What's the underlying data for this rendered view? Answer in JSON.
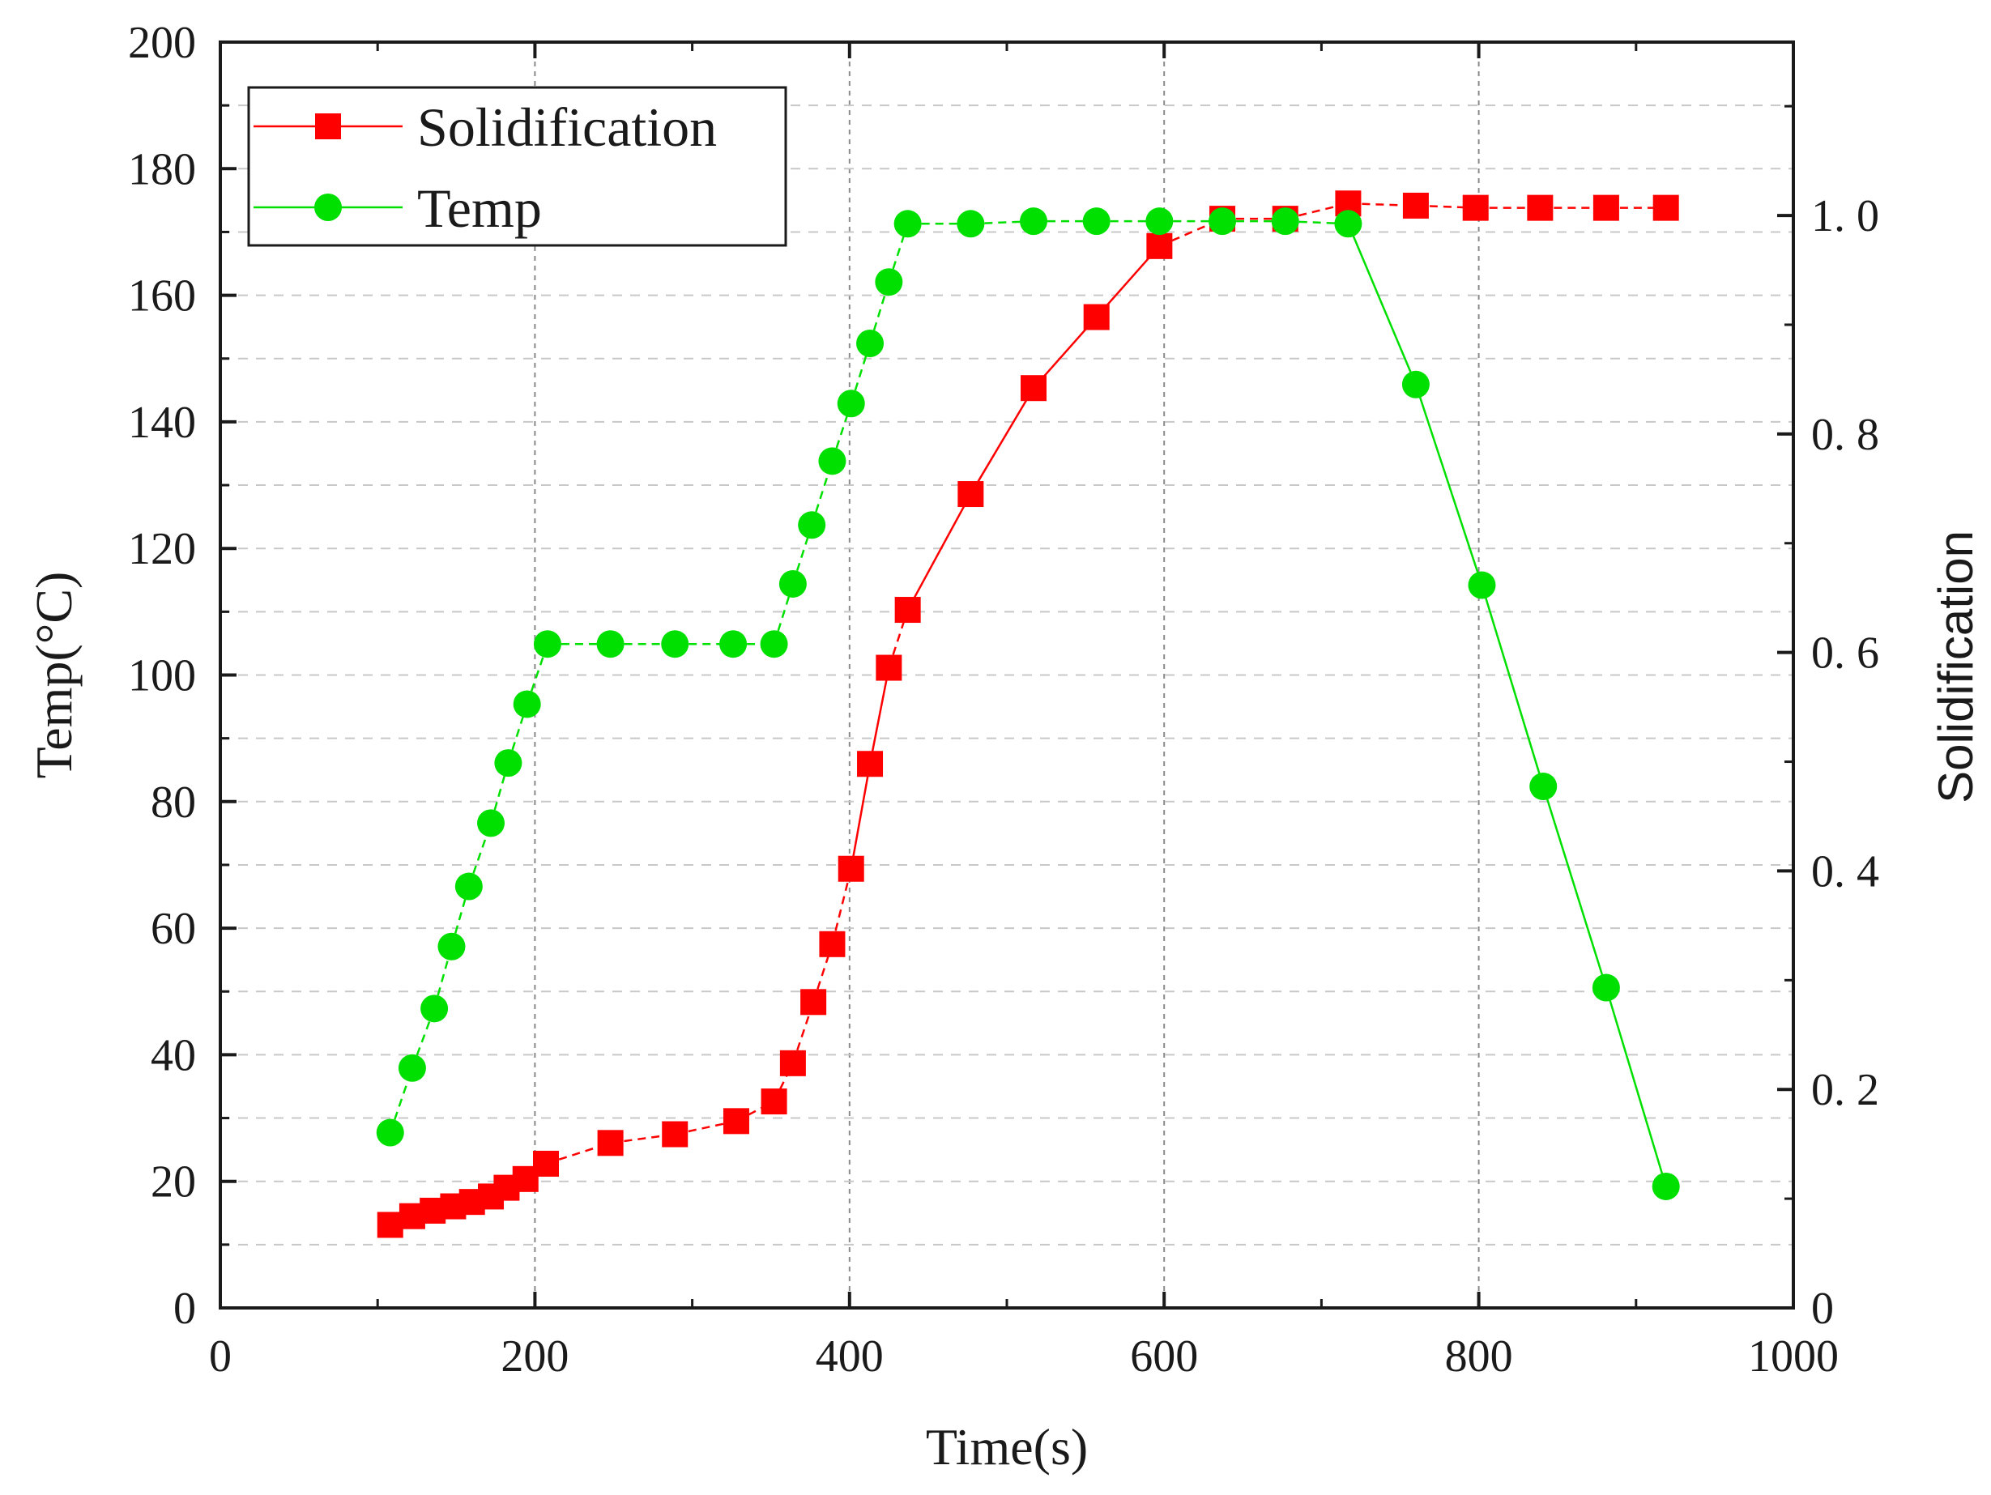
{
  "chart_data": {
    "type": "line",
    "xlabel": "Time(s)",
    "ylabel": "Temp(°C)",
    "ylabel_right": "Solidification",
    "xlim": [
      0,
      1000
    ],
    "ylim": [
      0,
      200
    ],
    "ylim_right": [
      0,
      1.1587
    ],
    "x_ticks": [
      0,
      200,
      400,
      600,
      800,
      1000
    ],
    "x_tick_labels": [
      "0",
      "200",
      "400",
      "600",
      "800",
      "1000"
    ],
    "y_ticks": [
      0,
      20,
      40,
      60,
      80,
      100,
      120,
      140,
      160,
      180,
      200
    ],
    "y_tick_labels": [
      "0",
      "20",
      "40",
      "60",
      "80",
      "100",
      "120",
      "140",
      "160",
      "180",
      "200"
    ],
    "y_right_ticks": [
      0,
      0.2,
      0.4,
      0.6,
      0.8,
      1.0
    ],
    "y_right_tick_labels": [
      "0",
      "0. 2",
      "0. 4",
      "0. 6",
      "0. 8",
      "1. 0"
    ],
    "grid": true,
    "legend_position": "top-left",
    "series": [
      {
        "name": "Solidification",
        "axis": "right",
        "color": "#ff0000",
        "marker": "square",
        "x": [
          108,
          122,
          135,
          148,
          160,
          172,
          182,
          194,
          207,
          248,
          289,
          328,
          352,
          364,
          377,
          389,
          401,
          413,
          425,
          437,
          477,
          517,
          557,
          597,
          637,
          677,
          717,
          760,
          798,
          839,
          881,
          919
        ],
        "y": [
          0.076,
          0.084,
          0.089,
          0.093,
          0.097,
          0.102,
          0.11,
          0.118,
          0.132,
          0.151,
          0.159,
          0.171,
          0.189,
          0.224,
          0.28,
          0.333,
          0.402,
          0.498,
          0.586,
          0.639,
          0.745,
          0.842,
          0.907,
          0.972,
          0.997,
          0.997,
          1.011,
          1.009,
          1.007,
          1.007,
          1.007,
          1.007
        ]
      },
      {
        "name": "Temp",
        "axis": "left",
        "color": "#00e000",
        "marker": "circle",
        "x": [
          108,
          122,
          136,
          147,
          158,
          172,
          183,
          195,
          208,
          248,
          289,
          326,
          352,
          364,
          376,
          389,
          401,
          413,
          425,
          437,
          477,
          517,
          557,
          597,
          637,
          677,
          717,
          760,
          802,
          841,
          881,
          919
        ],
        "y": [
          27.7,
          37.9,
          47.3,
          57.1,
          66.6,
          76.6,
          86.1,
          95.4,
          104.9,
          104.9,
          104.9,
          104.9,
          104.9,
          114.4,
          123.7,
          133.8,
          142.9,
          152.4,
          162.1,
          171.3,
          171.3,
          171.7,
          171.7,
          171.7,
          171.7,
          171.7,
          171.3,
          145.9,
          114.2,
          82.4,
          50.6,
          19.2
        ]
      }
    ]
  }
}
